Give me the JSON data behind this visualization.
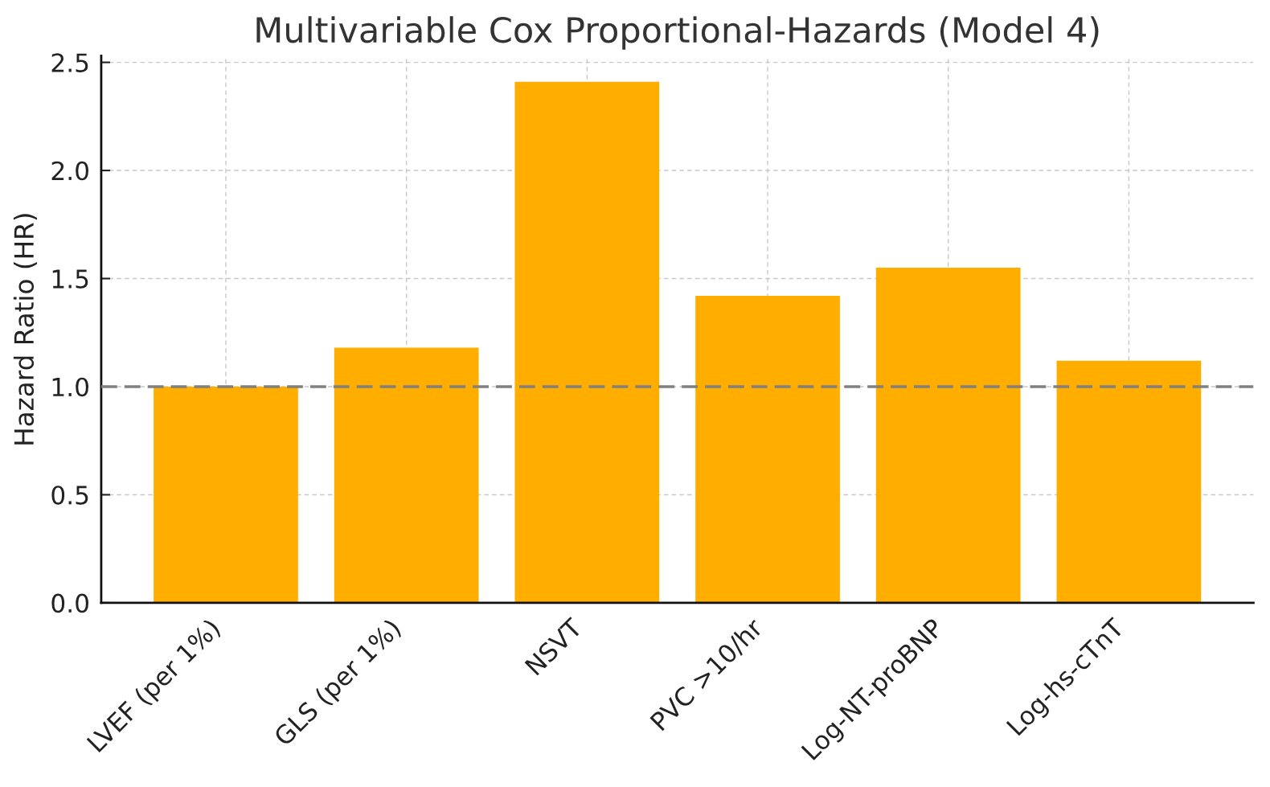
{
  "chart_data": {
    "type": "bar",
    "title": "Multivariable Cox Proportional-Hazards (Model 4)",
    "ylabel": "Hazard Ratio (HR)",
    "categories": [
      "LVEF (per 1%)",
      "GLS (per 1%)",
      "NSVT",
      "PVC >10/hr",
      "Log-NT-proBNP",
      "Log-hs-cTnT"
    ],
    "values": [
      1.0,
      1.18,
      2.41,
      1.42,
      1.55,
      1.12
    ],
    "color": "#ffae00",
    "ylim": [
      0,
      2.53
    ],
    "yticks": [
      {
        "value": 0,
        "label": "0.0"
      },
      0.5,
      {
        "value": 1,
        "label": "1.0"
      },
      1.5,
      {
        "value": 2,
        "label": "2.0"
      },
      2.5
    ],
    "ref_lines": [
      {
        "axis": "y",
        "value": 1.0,
        "color": "#808080",
        "line_style": "dashed"
      }
    ],
    "grid": true
  }
}
